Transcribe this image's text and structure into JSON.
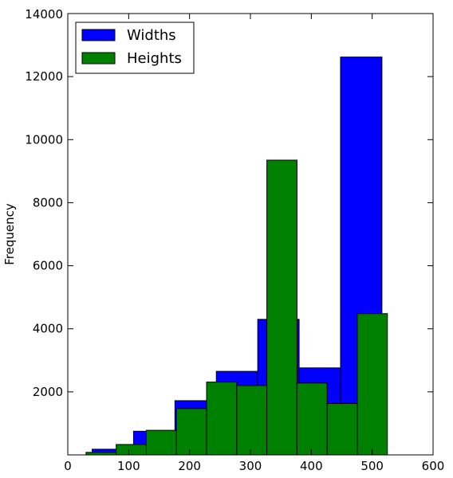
{
  "chart_data": {
    "type": "bar",
    "subtype": "histogram-overlay",
    "title": "",
    "xlabel": "",
    "ylabel": "Frequency",
    "xlim": [
      0,
      600
    ],
    "ylim": [
      0,
      14000
    ],
    "xticks": [
      0,
      100,
      200,
      300,
      400,
      500,
      600
    ],
    "yticks": [
      2000,
      4000,
      6000,
      8000,
      10000,
      12000,
      14000
    ],
    "y_top_label": "14000",
    "grid": false,
    "legend_position": "top-left",
    "series": [
      {
        "name": "Widths",
        "color": "#0000ff",
        "bins": [
          {
            "x0": 40,
            "x1": 108,
            "count": 180
          },
          {
            "x0": 108,
            "x1": 176,
            "count": 750
          },
          {
            "x0": 176,
            "x1": 244,
            "count": 1720
          },
          {
            "x0": 244,
            "x1": 312,
            "count": 2650
          },
          {
            "x0": 312,
            "x1": 380,
            "count": 4300
          },
          {
            "x0": 380,
            "x1": 448,
            "count": 2760
          },
          {
            "x0": 448,
            "x1": 516,
            "count": 12620
          }
        ]
      },
      {
        "name": "Heights",
        "color": "#008000",
        "bins": [
          {
            "x0": 30,
            "x1": 79.5,
            "count": 80
          },
          {
            "x0": 79.5,
            "x1": 129,
            "count": 330
          },
          {
            "x0": 129,
            "x1": 178.5,
            "count": 780
          },
          {
            "x0": 178.5,
            "x1": 228,
            "count": 1470
          },
          {
            "x0": 228,
            "x1": 277.5,
            "count": 2310
          },
          {
            "x0": 277.5,
            "x1": 327,
            "count": 2200
          },
          {
            "x0": 327,
            "x1": 376.5,
            "count": 9350
          },
          {
            "x0": 376.5,
            "x1": 426,
            "count": 2280
          },
          {
            "x0": 426,
            "x1": 475.5,
            "count": 1630
          },
          {
            "x0": 475.5,
            "x1": 525,
            "count": 4480
          }
        ]
      }
    ]
  }
}
